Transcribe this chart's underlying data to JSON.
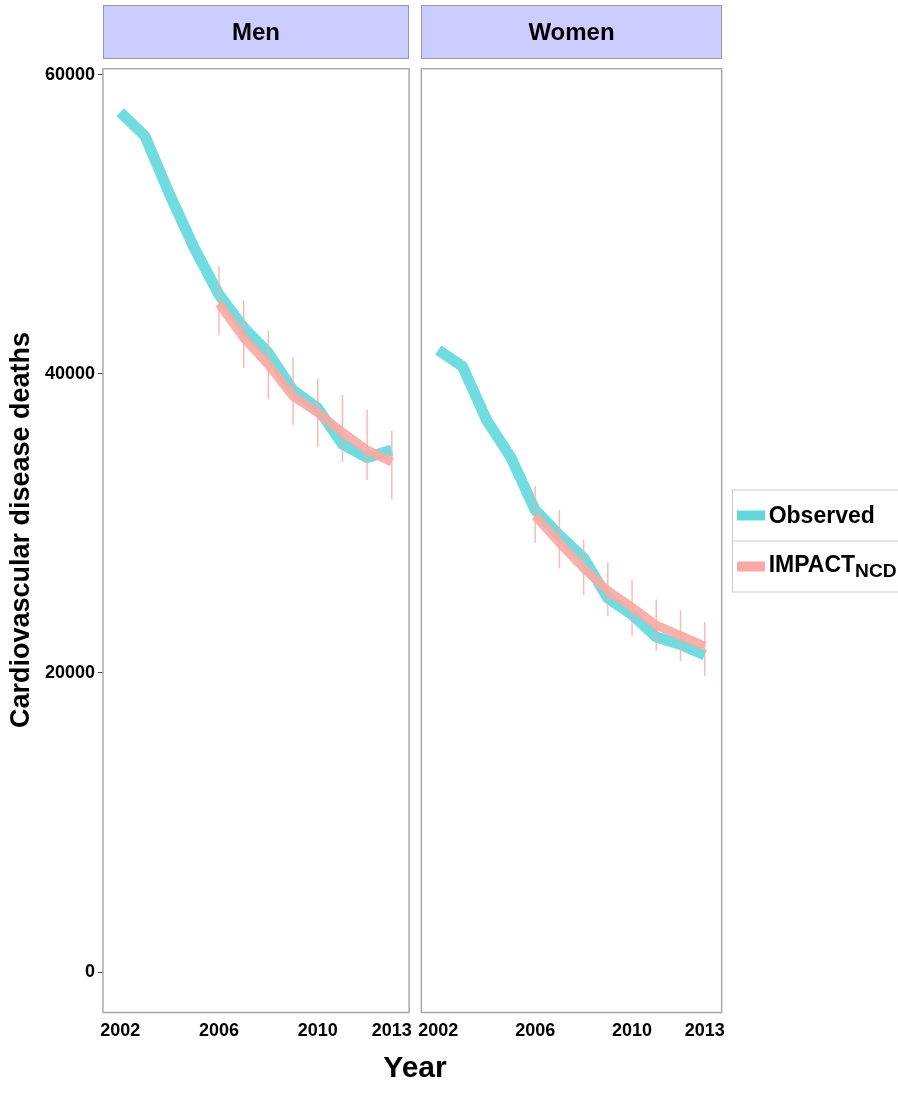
{
  "chart_data": [
    {
      "type": "line",
      "title": "Men",
      "xlabel": "Year",
      "ylabel": "Cardiovascular disease deaths",
      "x": [
        2002,
        2003,
        2004,
        2005,
        2006,
        2007,
        2008,
        2009,
        2010,
        2011,
        2012,
        2013
      ],
      "series": [
        {
          "color": "#62d8db",
          "values": [
            57500,
            55900,
            52000,
            48400,
            45300,
            43100,
            41400,
            38900,
            37700,
            35300,
            34400,
            34900
          ]
        },
        {
          "color": "#f8a9a3",
          "values": [
            null,
            null,
            null,
            null,
            44700,
            42400,
            40600,
            38500,
            37400,
            36100,
            34900,
            34100
          ],
          "errors": [
            null,
            null,
            null,
            null,
            [
              42600,
              47200
            ],
            [
              40400,
              44900
            ],
            [
              38300,
              42900
            ],
            [
              36600,
              41100
            ],
            [
              35100,
              39700
            ],
            [
              34100,
              38600
            ],
            [
              32900,
              37600
            ],
            [
              31600,
              36200
            ]
          ]
        }
      ],
      "xlim": [
        2001.3,
        2013.7
      ],
      "xticks": [
        2002,
        2006,
        2010,
        2013
      ],
      "ylim": [
        -2700,
        60400
      ],
      "yticks": [
        0,
        20000,
        40000,
        60000
      ],
      "marker": "none"
    },
    {
      "type": "line",
      "title": "Women",
      "x": [
        2002,
        2003,
        2004,
        2005,
        2006,
        2007,
        2008,
        2009,
        2010,
        2011,
        2012,
        2013
      ],
      "series": [
        {
          "name": "Observed",
          "color": "#62d8db",
          "values": [
            41600,
            40500,
            36900,
            34400,
            30900,
            29200,
            27700,
            25000,
            23900,
            22400,
            21900,
            21200
          ]
        },
        {
          "name": "IMPACT$_{NCD}$",
          "color": "#f8a9a3",
          "values": [
            null,
            null,
            null,
            null,
            30500,
            28700,
            27000,
            25500,
            24400,
            23200,
            22500,
            21800
          ],
          "errors": [
            null,
            null,
            null,
            null,
            [
              28700,
              32500
            ],
            [
              27000,
              30900
            ],
            [
              25200,
              28900
            ],
            [
              23800,
              27400
            ],
            [
              22500,
              26200
            ],
            [
              21500,
              24900
            ],
            [
              20800,
              24200
            ],
            [
              19800,
              23400
            ]
          ]
        }
      ],
      "xlim": [
        2001.3,
        2013.7
      ],
      "xticks": [
        2002,
        2006,
        2010,
        2013
      ],
      "ylim": [
        -2700,
        60400
      ],
      "yticks": [
        0,
        20000,
        40000,
        60000
      ],
      "tick_labels": "x",
      "legend": "right",
      "marker": "none"
    }
  ]
}
